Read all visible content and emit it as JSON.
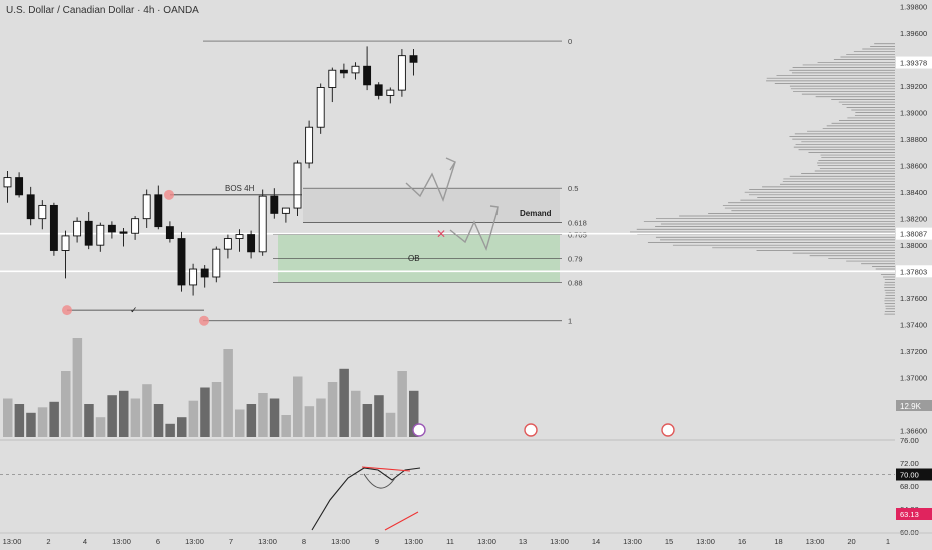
{
  "header": {
    "title": "U.S. Dollar / Canadian Dollar · 4h · OANDA"
  },
  "chart_data": {
    "type": "candlestick",
    "symbol": "USDCAD",
    "timeframe": "4h",
    "ylim": [
      1.3653,
      1.3985
    ],
    "price_ticks": [
      "1.39800",
      "1.39600",
      "1.39378",
      "1.39200",
      "1.39000",
      "1.38800",
      "1.38600",
      "1.38400",
      "1.38200",
      "1.38087",
      "1.38000",
      "1.37803",
      "1.37600",
      "1.37400",
      "1.37200",
      "1.37000",
      "1.36800",
      "1.36600"
    ],
    "price_tick_values": [
      1.398,
      1.396,
      1.39378,
      1.392,
      1.39,
      1.388,
      1.386,
      1.384,
      1.382,
      1.38087,
      1.38,
      1.37803,
      1.376,
      1.374,
      1.372,
      1.37,
      1.368,
      1.366
    ],
    "highlighted_prices": [
      {
        "label": "1.38087",
        "value": 1.38087
      },
      {
        "label": "1.37803",
        "value": 1.37803
      }
    ],
    "volume_badge": "12.9K",
    "x_ticks": [
      "13:00",
      "2",
      "4",
      "13:00",
      "6",
      "13:00",
      "7",
      "13:00",
      "8",
      "13:00",
      "9",
      "13:00",
      "11",
      "13:00",
      "13",
      "13:00",
      "14",
      "13:00",
      "15",
      "13:00",
      "16",
      "18",
      "13:00",
      "20",
      "1"
    ],
    "candles": [
      {
        "o": 1.3844,
        "h": 1.3856,
        "l": 1.3832,
        "c": 1.3851
      },
      {
        "o": 1.3851,
        "h": 1.3855,
        "l": 1.3836,
        "c": 1.3838
      },
      {
        "o": 1.3838,
        "h": 1.3844,
        "l": 1.3815,
        "c": 1.382
      },
      {
        "o": 1.382,
        "h": 1.3834,
        "l": 1.3812,
        "c": 1.383
      },
      {
        "o": 1.383,
        "h": 1.3832,
        "l": 1.3792,
        "c": 1.3796
      },
      {
        "o": 1.3796,
        "h": 1.3811,
        "l": 1.3775,
        "c": 1.3807
      },
      {
        "o": 1.3807,
        "h": 1.3821,
        "l": 1.3802,
        "c": 1.3818
      },
      {
        "o": 1.3818,
        "h": 1.3825,
        "l": 1.3797,
        "c": 1.38
      },
      {
        "o": 1.38,
        "h": 1.3817,
        "l": 1.3795,
        "c": 1.3815
      },
      {
        "o": 1.3815,
        "h": 1.3818,
        "l": 1.3805,
        "c": 1.381
      },
      {
        "o": 1.381,
        "h": 1.3813,
        "l": 1.3799,
        "c": 1.3809
      },
      {
        "o": 1.3809,
        "h": 1.3822,
        "l": 1.3804,
        "c": 1.382
      },
      {
        "o": 1.382,
        "h": 1.3842,
        "l": 1.3813,
        "c": 1.3838
      },
      {
        "o": 1.3838,
        "h": 1.3845,
        "l": 1.3812,
        "c": 1.3814
      },
      {
        "o": 1.3814,
        "h": 1.3818,
        "l": 1.3802,
        "c": 1.3805
      },
      {
        "o": 1.3805,
        "h": 1.381,
        "l": 1.3765,
        "c": 1.377
      },
      {
        "o": 1.377,
        "h": 1.3786,
        "l": 1.3762,
        "c": 1.3782
      },
      {
        "o": 1.3782,
        "h": 1.3785,
        "l": 1.3768,
        "c": 1.3776
      },
      {
        "o": 1.3776,
        "h": 1.3799,
        "l": 1.3772,
        "c": 1.3797
      },
      {
        "o": 1.3797,
        "h": 1.3808,
        "l": 1.379,
        "c": 1.3805
      },
      {
        "o": 1.3805,
        "h": 1.3812,
        "l": 1.3795,
        "c": 1.3808
      },
      {
        "o": 1.3808,
        "h": 1.3811,
        "l": 1.379,
        "c": 1.3795
      },
      {
        "o": 1.3795,
        "h": 1.3842,
        "l": 1.3792,
        "c": 1.3837
      },
      {
        "o": 1.3837,
        "h": 1.3843,
        "l": 1.382,
        "c": 1.3824
      },
      {
        "o": 1.3824,
        "h": 1.3828,
        "l": 1.3817,
        "c": 1.3828
      },
      {
        "o": 1.3828,
        "h": 1.3864,
        "l": 1.3822,
        "c": 1.3862
      },
      {
        "o": 1.3862,
        "h": 1.3894,
        "l": 1.3858,
        "c": 1.3889
      },
      {
        "o": 1.3889,
        "h": 1.3922,
        "l": 1.3884,
        "c": 1.3919
      },
      {
        "o": 1.3919,
        "h": 1.3934,
        "l": 1.3908,
        "c": 1.3932
      },
      {
        "o": 1.3932,
        "h": 1.3937,
        "l": 1.3926,
        "c": 1.393
      },
      {
        "o": 1.393,
        "h": 1.3938,
        "l": 1.3925,
        "c": 1.3935
      },
      {
        "o": 1.3935,
        "h": 1.395,
        "l": 1.3917,
        "c": 1.3921
      },
      {
        "o": 1.3921,
        "h": 1.3923,
        "l": 1.391,
        "c": 1.3913
      },
      {
        "o": 1.3913,
        "h": 1.3919,
        "l": 1.3907,
        "c": 1.3917
      },
      {
        "o": 1.3917,
        "h": 1.3948,
        "l": 1.3912,
        "c": 1.3943
      },
      {
        "o": 1.3943,
        "h": 1.3948,
        "l": 1.3928,
        "c": 1.3938
      }
    ],
    "volume": [
      0.35,
      0.3,
      0.22,
      0.27,
      0.32,
      0.6,
      0.9,
      0.3,
      0.18,
      0.38,
      0.42,
      0.35,
      0.48,
      0.3,
      0.12,
      0.18,
      0.33,
      0.45,
      0.5,
      0.8,
      0.25,
      0.3,
      0.4,
      0.35,
      0.2,
      0.55,
      0.28,
      0.35,
      0.5,
      0.62,
      0.42,
      0.3,
      0.38,
      0.22,
      0.6,
      0.42
    ],
    "rsi": {
      "ylim": [
        60,
        76
      ],
      "ticks": [
        "76.00",
        "72.00",
        "68.00",
        "64.00",
        "60.00"
      ],
      "tick_values": [
        76,
        72,
        68,
        64,
        60
      ],
      "level_line": 70.0,
      "current": "70.00",
      "second": "63.13",
      "second_value": 63.13
    },
    "fib_levels": [
      {
        "label": "0",
        "price": 1.3954
      },
      {
        "label": "0.5",
        "price": 1.3843
      },
      {
        "label": "0.618",
        "price": 1.3817
      },
      {
        "label": "0.705",
        "price": 1.3808
      },
      {
        "label": "0.79",
        "price": 1.379
      },
      {
        "label": "0.88",
        "price": 1.3772
      },
      {
        "label": "1",
        "price": 1.3743
      }
    ],
    "annotations": {
      "bos": "BOS 4H",
      "demand": "Demand",
      "ob": "OB",
      "check": "✓"
    }
  }
}
